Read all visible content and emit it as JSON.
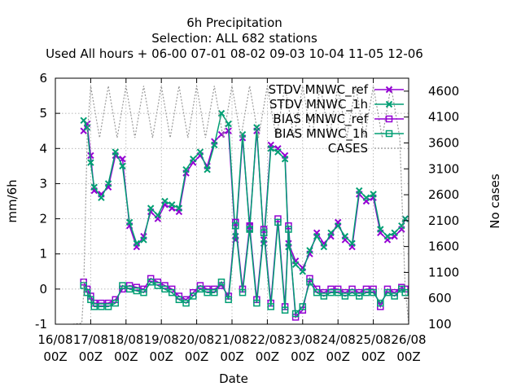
{
  "chart_data": {
    "type": "line",
    "title_lines": [
      "6h Precipitation",
      "Selection: ALL     682 stations",
      "Used  All hours  + 06-00 07-01 08-02 09-03 10-04 11-05 12-06"
    ],
    "xlabel": "Date",
    "ylabel": "mm/6h",
    "y2label": "No cases",
    "x_ticks": [
      {
        "top": "16/08",
        "bottom": "00Z"
      },
      {
        "top": "17/08",
        "bottom": "00Z"
      },
      {
        "top": "18/08",
        "bottom": "00Z"
      },
      {
        "top": "19/08",
        "bottom": "00Z"
      },
      {
        "top": "20/08",
        "bottom": "00Z"
      },
      {
        "top": "21/08",
        "bottom": "00Z"
      },
      {
        "top": "22/08",
        "bottom": "00Z"
      },
      {
        "top": "23/08",
        "bottom": "00Z"
      },
      {
        "top": "24/08",
        "bottom": "00Z"
      },
      {
        "top": "25/08",
        "bottom": "00Z"
      },
      {
        "top": "26/08",
        "bottom": "00Z"
      }
    ],
    "xlim_days": [
      16,
      26
    ],
    "ylim": [
      -1,
      6
    ],
    "y_ticks": [
      "-1",
      "0",
      "1",
      "2",
      "3",
      "4",
      "5",
      "6"
    ],
    "y2lim": [
      100,
      4850
    ],
    "y2_ticks": [
      "100",
      "600",
      "1100",
      "1600",
      "2100",
      "2600",
      "3100",
      "3600",
      "4100",
      "4600"
    ],
    "grid": true,
    "legend_position": "top-right",
    "legend": [
      "STDV MNWC_ref",
      "STDV MNWC_1h",
      "BIAS MNWC_ref",
      "BIAS MNWC_1h",
      "CASES"
    ],
    "colors": {
      "ref": "#9400d3",
      "h1": "#009e73",
      "cases": "#999999",
      "grid": "#a0a0a0"
    },
    "series": [
      {
        "name": "STDV MNWC_ref",
        "axis": "y1",
        "color": "#9400d3",
        "marker": "x",
        "x": [
          16.8,
          16.9,
          17.0,
          17.1,
          17.3,
          17.5,
          17.7,
          17.9,
          18.1,
          18.3,
          18.5,
          18.7,
          18.9,
          19.1,
          19.3,
          19.5,
          19.7,
          19.9,
          20.1,
          20.3,
          20.5,
          20.7,
          20.9,
          21.1,
          21.3,
          21.5,
          21.7,
          21.9,
          22.1,
          22.3,
          22.5,
          22.6,
          22.8,
          23.0,
          23.2,
          23.4,
          23.6,
          23.8,
          24.0,
          24.2,
          24.4,
          24.6,
          24.8,
          25.0,
          25.2,
          25.4,
          25.6,
          25.8,
          25.9
        ],
        "y": [
          4.5,
          4.7,
          3.8,
          2.8,
          2.7,
          2.9,
          3.8,
          3.7,
          1.8,
          1.2,
          1.5,
          2.2,
          2.0,
          2.4,
          2.3,
          2.2,
          3.3,
          3.6,
          3.8,
          3.5,
          4.2,
          4.4,
          4.5,
          1.4,
          4.3,
          1.8,
          4.5,
          1.4,
          4.1,
          4.0,
          3.8,
          1.3,
          0.8,
          0.6,
          1.0,
          1.6,
          1.3,
          1.5,
          1.9,
          1.4,
          1.2,
          2.7,
          2.5,
          2.6,
          1.6,
          1.4,
          1.5,
          1.7,
          2.0
        ]
      },
      {
        "name": "STDV MNWC_1h",
        "axis": "y1",
        "color": "#009e73",
        "marker": "x",
        "x": [
          16.8,
          16.9,
          17.0,
          17.1,
          17.3,
          17.5,
          17.7,
          17.9,
          18.1,
          18.3,
          18.5,
          18.7,
          18.9,
          19.1,
          19.3,
          19.5,
          19.7,
          19.9,
          20.1,
          20.3,
          20.5,
          20.7,
          20.9,
          21.1,
          21.3,
          21.5,
          21.7,
          21.9,
          22.1,
          22.3,
          22.5,
          22.6,
          22.8,
          23.0,
          23.2,
          23.4,
          23.6,
          23.8,
          24.0,
          24.2,
          24.4,
          24.6,
          24.8,
          25.0,
          25.2,
          25.4,
          25.6,
          25.8,
          25.9
        ],
        "y": [
          4.8,
          4.6,
          3.6,
          2.9,
          2.6,
          3.0,
          3.9,
          3.5,
          1.9,
          1.3,
          1.4,
          2.3,
          2.1,
          2.5,
          2.4,
          2.3,
          3.4,
          3.7,
          3.9,
          3.4,
          4.1,
          5.0,
          4.7,
          1.5,
          4.4,
          1.7,
          4.6,
          1.3,
          4.0,
          3.9,
          3.7,
          1.2,
          0.7,
          0.5,
          1.1,
          1.5,
          1.2,
          1.6,
          1.8,
          1.5,
          1.3,
          2.8,
          2.6,
          2.7,
          1.7,
          1.5,
          1.6,
          1.8,
          2.0
        ]
      },
      {
        "name": "BIAS MNWC_ref",
        "axis": "y1",
        "color": "#9400d3",
        "marker": "box",
        "x": [
          16.8,
          16.9,
          17.0,
          17.1,
          17.3,
          17.5,
          17.7,
          17.9,
          18.1,
          18.3,
          18.5,
          18.7,
          18.9,
          19.1,
          19.3,
          19.5,
          19.7,
          19.9,
          20.1,
          20.3,
          20.5,
          20.7,
          20.9,
          21.1,
          21.3,
          21.5,
          21.7,
          21.9,
          22.1,
          22.3,
          22.5,
          22.6,
          22.8,
          23.0,
          23.2,
          23.4,
          23.6,
          23.8,
          24.0,
          24.2,
          24.4,
          24.6,
          24.8,
          25.0,
          25.2,
          25.4,
          25.6,
          25.8,
          25.9
        ],
        "y": [
          0.2,
          0.0,
          -0.2,
          -0.4,
          -0.4,
          -0.4,
          -0.3,
          0.0,
          0.1,
          0.05,
          0.0,
          0.3,
          0.2,
          0.1,
          0.0,
          -0.2,
          -0.3,
          -0.1,
          0.1,
          0.0,
          0.0,
          0.1,
          -0.2,
          1.9,
          0.0,
          1.8,
          -0.3,
          1.7,
          -0.4,
          2.0,
          -0.5,
          1.8,
          -0.8,
          -0.6,
          0.3,
          0.0,
          -0.1,
          0.0,
          0.0,
          -0.1,
          0.0,
          -0.1,
          0.0,
          0.0,
          -0.5,
          0.0,
          -0.1,
          0.05,
          0.0
        ]
      },
      {
        "name": "BIAS MNWC_1h",
        "axis": "y1",
        "color": "#009e73",
        "marker": "box",
        "x": [
          16.8,
          16.9,
          17.0,
          17.1,
          17.3,
          17.5,
          17.7,
          17.9,
          18.1,
          18.3,
          18.5,
          18.7,
          18.9,
          19.1,
          19.3,
          19.5,
          19.7,
          19.9,
          20.1,
          20.3,
          20.5,
          20.7,
          20.9,
          21.1,
          21.3,
          21.5,
          21.7,
          21.9,
          22.1,
          22.3,
          22.5,
          22.6,
          22.8,
          23.0,
          23.2,
          23.4,
          23.6,
          23.8,
          24.0,
          24.2,
          24.4,
          24.6,
          24.8,
          25.0,
          25.2,
          25.4,
          25.6,
          25.8,
          25.9
        ],
        "y": [
          0.1,
          -0.1,
          -0.3,
          -0.5,
          -0.5,
          -0.5,
          -0.4,
          0.1,
          0.0,
          -0.05,
          -0.1,
          0.2,
          0.1,
          0.0,
          -0.1,
          -0.3,
          -0.4,
          -0.2,
          0.0,
          -0.1,
          -0.1,
          0.2,
          -0.3,
          1.8,
          -0.1,
          1.7,
          -0.4,
          1.6,
          -0.5,
          1.9,
          -0.6,
          1.7,
          -0.7,
          -0.5,
          0.2,
          -0.1,
          -0.2,
          -0.1,
          -0.1,
          -0.2,
          -0.1,
          -0.2,
          -0.1,
          -0.1,
          -0.4,
          -0.1,
          -0.2,
          0.0,
          -0.1
        ]
      },
      {
        "name": "CASES",
        "axis": "y2",
        "color": "#999999",
        "marker": "none",
        "x": [
          16.5,
          16.75,
          16.8,
          16.9,
          17.0,
          17.25,
          17.5,
          17.75,
          18.0,
          18.25,
          18.5,
          18.75,
          19.0,
          19.25,
          19.5,
          19.75,
          20.0,
          20.25,
          20.5,
          20.75,
          21.0,
          21.25,
          21.5,
          21.75,
          22.0,
          22.25,
          22.5,
          22.75,
          23.0,
          23.25,
          23.5,
          23.75,
          24.0,
          24.25,
          24.5,
          24.75,
          25.0,
          25.25,
          25.5,
          25.75,
          25.9,
          26.0
        ],
        "y": [
          100,
          120,
          700,
          3700,
          4700,
          3700,
          4700,
          3700,
          4700,
          3700,
          4700,
          3700,
          4700,
          3700,
          4700,
          3700,
          4700,
          3700,
          4700,
          3700,
          4700,
          3700,
          4700,
          3700,
          4700,
          3700,
          4700,
          3700,
          4700,
          3700,
          4700,
          3700,
          4700,
          3700,
          4700,
          3700,
          4700,
          3700,
          4700,
          3700,
          800,
          120
        ]
      }
    ]
  }
}
